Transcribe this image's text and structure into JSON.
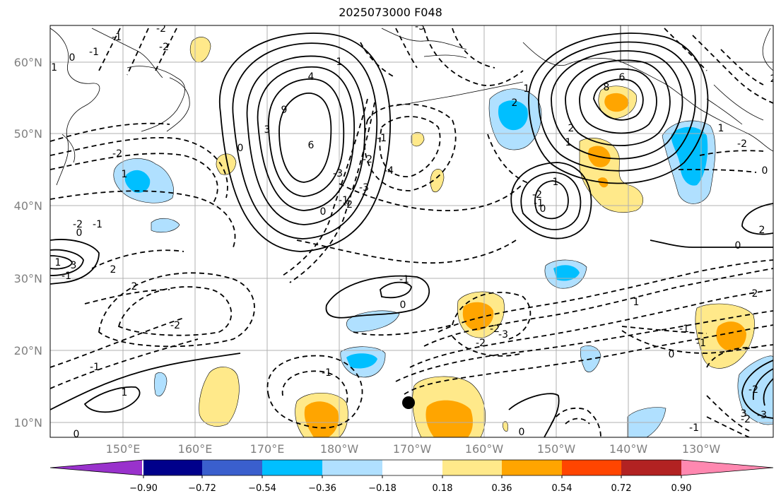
{
  "title": "2025073000 F048",
  "lat_labels": [
    "60°N",
    "50°N",
    "40°N",
    "30°N",
    "20°N",
    "10°N"
  ],
  "lon_labels": [
    "150°E",
    "160°E",
    "170°E",
    "180°W",
    "170°W",
    "160°W",
    "150°W",
    "140°W",
    "130°W"
  ],
  "colorbar": {
    "colors": [
      "#9932cc",
      "#00008b",
      "#3a5fcd",
      "#00bfff",
      "#b0e0ff",
      "#ffffff",
      "#ffe98a",
      "#ffa500",
      "#ff4500",
      "#b22222",
      "#ff88b0"
    ],
    "ticks": [
      "−0.90",
      "−0.72",
      "−0.54",
      "−0.36",
      "−0.18",
      "0.18",
      "0.36",
      "0.54",
      "0.72",
      "0.90"
    ]
  },
  "contour_labels": [
    "-1",
    "-2",
    "0",
    "-1",
    "-1",
    "-3",
    "-2",
    "4",
    "3",
    "9",
    "6",
    "1",
    "0",
    "-1",
    "-2",
    "-3",
    "-4",
    "-3",
    "-2",
    "-2",
    "-1",
    "1",
    "-2",
    "0",
    "-1",
    "1",
    "3",
    "2",
    "2",
    "-2",
    "-1",
    "0",
    "-1",
    "-1",
    "0",
    "-1",
    "1",
    "0",
    "-2",
    "-3",
    "-2",
    "0",
    "-1",
    "-1",
    "1",
    "2",
    "3",
    "6",
    "8",
    "1",
    "2",
    "1",
    "0",
    "-1",
    "-2",
    "2",
    "1",
    "0",
    "0",
    "0",
    "-1",
    "-2",
    "-3",
    "-2",
    "2",
    "1",
    "2",
    "-2"
  ]
}
